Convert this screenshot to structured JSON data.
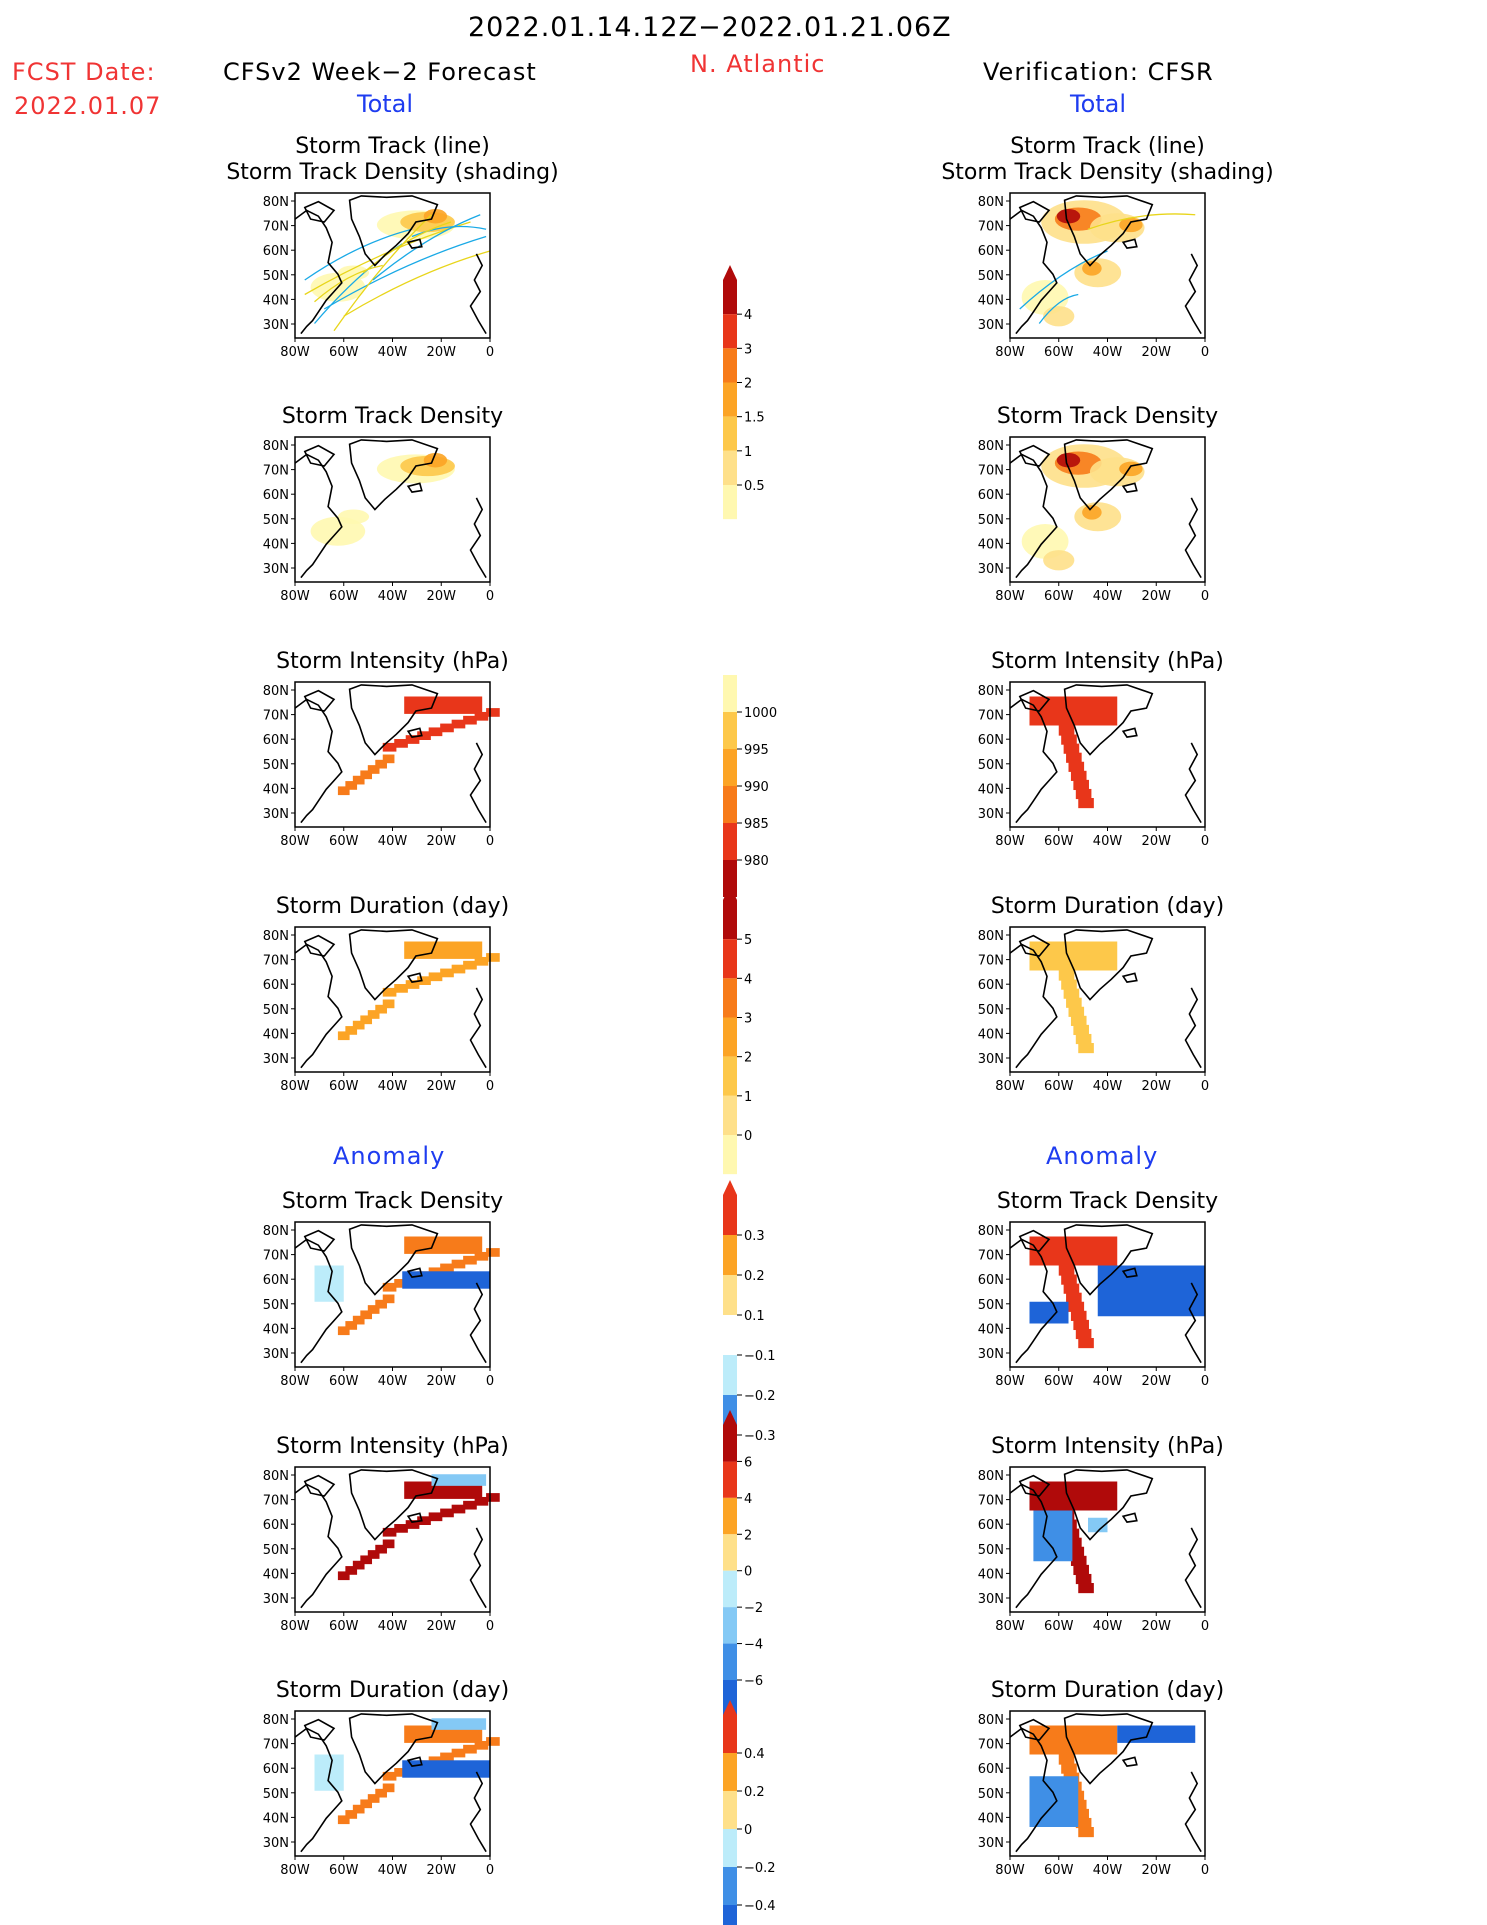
{
  "header": {
    "date_range": "2022.01.14.12Z−2022.01.21.06Z",
    "fcst_label": "FCST Date:",
    "fcst_date": "2022.01.07",
    "left_title": "CFSv2 Week−2 Forecast",
    "region": "N. Atlantic",
    "right_title": "Verification: CFSR",
    "total_left": "Total",
    "total_right": "Total",
    "anomaly_left": "Anomaly",
    "anomaly_right": "Anomaly"
  },
  "panel_titles": {
    "track_line": "Storm Track (line)",
    "track_shading": "Storm Track Density (shading)",
    "density": "Storm Track Density",
    "intensity": "Storm Intensity (hPa)",
    "duration": "Storm Duration (day)"
  },
  "axes": {
    "lat_labels": [
      "80N",
      "70N",
      "60N",
      "50N",
      "40N",
      "30N"
    ],
    "lon_labels": [
      "80W",
      "60W",
      "40W",
      "20W",
      "0"
    ]
  },
  "colors": {
    "fill_levels": [
      "#fff8b0",
      "#fee08a",
      "#fdc84a",
      "#fca425",
      "#f77b1a",
      "#e8361a",
      "#b00a0a"
    ],
    "cool_levels": [
      "#bcecfa",
      "#84c9f5",
      "#3f8fe6",
      "#1e64d8"
    ],
    "track_cyan": "#19a9e6",
    "track_yellow": "#e8d51a",
    "accent_red": "#f03434",
    "accent_blue": "#1e3cf0"
  },
  "colorbars": [
    {
      "name": "total-density-colorbar",
      "labels": [
        "4",
        "3",
        "2",
        "1.5",
        "1",
        "0.5"
      ]
    },
    {
      "name": "total-intensity-colorbar",
      "labels": [
        "1000",
        "995",
        "990",
        "985",
        "980"
      ]
    },
    {
      "name": "total-duration-colorbar",
      "labels": [
        "5",
        "4",
        "3",
        "2",
        "1",
        "0"
      ]
    },
    {
      "name": "anomaly-density-colorbar",
      "labels": [
        "0.3",
        "0.2",
        "0.1",
        "−0.1",
        "−0.2",
        "−0.3"
      ]
    },
    {
      "name": "anomaly-intensity-colorbar",
      "labels": [
        "6",
        "4",
        "2",
        "0",
        "−2",
        "−4",
        "−6"
      ]
    },
    {
      "name": "anomaly-duration-colorbar",
      "labels": [
        "0.4",
        "0.2",
        "0",
        "−0.2",
        "−0.4"
      ]
    }
  ]
}
